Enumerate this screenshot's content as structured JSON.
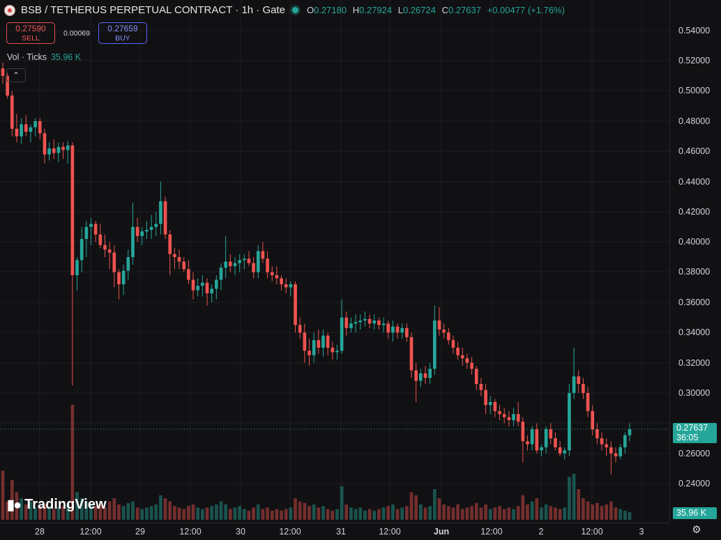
{
  "header": {
    "title": "BSB / TETHERUS PERPETUAL CONTRACT · 1h · Gate",
    "ohlc": [
      {
        "k": "O",
        "v": "0.27180"
      },
      {
        "k": "H",
        "v": "0.27924"
      },
      {
        "k": "L",
        "v": "0.26724"
      },
      {
        "k": "C",
        "v": "0.27637"
      }
    ],
    "change": "+0.00477 (+1.76%)"
  },
  "trade": {
    "sell_price": "0.27590",
    "sell_label": "SELL",
    "spread": "0.00069",
    "buy_price": "0.27659",
    "buy_label": "BUY"
  },
  "volume_legend": {
    "label": "Vol · Ticks",
    "value": "35.96 K"
  },
  "collapse_icon": "chevron-up-icon",
  "logo_text": "TradingView",
  "price_axis": [
    "0.54000",
    "0.52000",
    "0.50000",
    "0.48000",
    "0.46000",
    "0.44000",
    "0.42000",
    "0.40000",
    "0.38000",
    "0.36000",
    "0.34000",
    "0.32000",
    "0.30000",
    "0.28000",
    "0.26000",
    "0.24000"
  ],
  "time_axis": [
    {
      "t": "28",
      "bold": false
    },
    {
      "t": "12:00",
      "bold": false
    },
    {
      "t": "29",
      "bold": false
    },
    {
      "t": "12:00",
      "bold": false
    },
    {
      "t": "30",
      "bold": false
    },
    {
      "t": "12:00",
      "bold": false
    },
    {
      "t": "31",
      "bold": false
    },
    {
      "t": "12:00",
      "bold": false
    },
    {
      "t": "Jun",
      "bold": true
    },
    {
      "t": "12:00",
      "bold": false
    },
    {
      "t": "2",
      "bold": false
    },
    {
      "t": "12:00",
      "bold": false
    },
    {
      "t": "3",
      "bold": false
    }
  ],
  "last_price_tag": {
    "price": "0.27637",
    "countdown": "36:05"
  },
  "volume_tag": "35.96 K",
  "colors": {
    "up": "#26a69a",
    "down": "#ef5350",
    "background": "#111113",
    "grid": "#1e1e22"
  },
  "chart_data": {
    "type": "candlestick",
    "price_range": [
      0.23,
      0.56
    ],
    "candles": [
      [
        0.515,
        0.519,
        0.505,
        0.51
      ],
      [
        0.51,
        0.512,
        0.495,
        0.497
      ],
      [
        0.497,
        0.5,
        0.47,
        0.475
      ],
      [
        0.475,
        0.485,
        0.466,
        0.47
      ],
      [
        0.47,
        0.482,
        0.465,
        0.478
      ],
      [
        0.478,
        0.484,
        0.47,
        0.473
      ],
      [
        0.473,
        0.478,
        0.466,
        0.476
      ],
      [
        0.476,
        0.482,
        0.47,
        0.48
      ],
      [
        0.48,
        0.482,
        0.468,
        0.472
      ],
      [
        0.472,
        0.475,
        0.452,
        0.458
      ],
      [
        0.458,
        0.466,
        0.454,
        0.462
      ],
      [
        0.462,
        0.468,
        0.455,
        0.459
      ],
      [
        0.459,
        0.466,
        0.453,
        0.463
      ],
      [
        0.463,
        0.466,
        0.455,
        0.461
      ],
      [
        0.461,
        0.467,
        0.452,
        0.464
      ],
      [
        0.464,
        0.466,
        0.305,
        0.378
      ],
      [
        0.378,
        0.39,
        0.368,
        0.388
      ],
      [
        0.388,
        0.41,
        0.38,
        0.402
      ],
      [
        0.402,
        0.414,
        0.39,
        0.41
      ],
      [
        0.41,
        0.416,
        0.398,
        0.412
      ],
      [
        0.412,
        0.414,
        0.4,
        0.405
      ],
      [
        0.405,
        0.412,
        0.396,
        0.398
      ],
      [
        0.398,
        0.405,
        0.39,
        0.395
      ],
      [
        0.395,
        0.4,
        0.382,
        0.393
      ],
      [
        0.393,
        0.398,
        0.37,
        0.38
      ],
      [
        0.38,
        0.382,
        0.362,
        0.372
      ],
      [
        0.372,
        0.385,
        0.365,
        0.381
      ],
      [
        0.381,
        0.395,
        0.375,
        0.39
      ],
      [
        0.39,
        0.426,
        0.385,
        0.41
      ],
      [
        0.41,
        0.416,
        0.4,
        0.404
      ],
      [
        0.404,
        0.41,
        0.398,
        0.407
      ],
      [
        0.407,
        0.414,
        0.402,
        0.408
      ],
      [
        0.408,
        0.418,
        0.402,
        0.41
      ],
      [
        0.41,
        0.42,
        0.404,
        0.412
      ],
      [
        0.412,
        0.44,
        0.405,
        0.427
      ],
      [
        0.427,
        0.43,
        0.402,
        0.405
      ],
      [
        0.405,
        0.408,
        0.378,
        0.392
      ],
      [
        0.392,
        0.396,
        0.382,
        0.39
      ],
      [
        0.39,
        0.395,
        0.382,
        0.387
      ],
      [
        0.387,
        0.39,
        0.38,
        0.382
      ],
      [
        0.382,
        0.388,
        0.372,
        0.375
      ],
      [
        0.375,
        0.38,
        0.362,
        0.368
      ],
      [
        0.368,
        0.376,
        0.364,
        0.371
      ],
      [
        0.371,
        0.378,
        0.364,
        0.373
      ],
      [
        0.373,
        0.376,
        0.358,
        0.366
      ],
      [
        0.366,
        0.372,
        0.36,
        0.369
      ],
      [
        0.369,
        0.378,
        0.362,
        0.375
      ],
      [
        0.375,
        0.386,
        0.368,
        0.383
      ],
      [
        0.383,
        0.404,
        0.376,
        0.387
      ],
      [
        0.387,
        0.392,
        0.38,
        0.384
      ],
      [
        0.384,
        0.39,
        0.378,
        0.386
      ],
      [
        0.386,
        0.392,
        0.38,
        0.388
      ],
      [
        0.388,
        0.392,
        0.382,
        0.389
      ],
      [
        0.389,
        0.394,
        0.384,
        0.386
      ],
      [
        0.386,
        0.39,
        0.376,
        0.38
      ],
      [
        0.38,
        0.398,
        0.376,
        0.394
      ],
      [
        0.394,
        0.4,
        0.386,
        0.389
      ],
      [
        0.389,
        0.394,
        0.376,
        0.38
      ],
      [
        0.38,
        0.384,
        0.374,
        0.378
      ],
      [
        0.378,
        0.384,
        0.372,
        0.376
      ],
      [
        0.376,
        0.378,
        0.368,
        0.372
      ],
      [
        0.372,
        0.376,
        0.366,
        0.37
      ],
      [
        0.37,
        0.374,
        0.364,
        0.372
      ],
      [
        0.372,
        0.374,
        0.34,
        0.345
      ],
      [
        0.345,
        0.35,
        0.336,
        0.34
      ],
      [
        0.34,
        0.346,
        0.32,
        0.328
      ],
      [
        0.328,
        0.336,
        0.318,
        0.325
      ],
      [
        0.325,
        0.34,
        0.32,
        0.335
      ],
      [
        0.335,
        0.342,
        0.326,
        0.33
      ],
      [
        0.33,
        0.342,
        0.324,
        0.338
      ],
      [
        0.338,
        0.34,
        0.325,
        0.33
      ],
      [
        0.33,
        0.334,
        0.322,
        0.327
      ],
      [
        0.327,
        0.332,
        0.322,
        0.328
      ],
      [
        0.328,
        0.362,
        0.326,
        0.35
      ],
      [
        0.35,
        0.354,
        0.338,
        0.343
      ],
      [
        0.343,
        0.35,
        0.34,
        0.346
      ],
      [
        0.346,
        0.352,
        0.34,
        0.347
      ],
      [
        0.347,
        0.352,
        0.342,
        0.348
      ],
      [
        0.348,
        0.354,
        0.344,
        0.349
      ],
      [
        0.349,
        0.352,
        0.343,
        0.346
      ],
      [
        0.346,
        0.352,
        0.342,
        0.348
      ],
      [
        0.348,
        0.35,
        0.342,
        0.345
      ],
      [
        0.345,
        0.35,
        0.34,
        0.346
      ],
      [
        0.346,
        0.348,
        0.336,
        0.34
      ],
      [
        0.34,
        0.348,
        0.334,
        0.344
      ],
      [
        0.344,
        0.346,
        0.336,
        0.34
      ],
      [
        0.34,
        0.346,
        0.336,
        0.343
      ],
      [
        0.343,
        0.346,
        0.334,
        0.337
      ],
      [
        0.337,
        0.34,
        0.31,
        0.315
      ],
      [
        0.315,
        0.32,
        0.294,
        0.308
      ],
      [
        0.308,
        0.316,
        0.304,
        0.313
      ],
      [
        0.313,
        0.318,
        0.306,
        0.31
      ],
      [
        0.31,
        0.32,
        0.306,
        0.316
      ],
      [
        0.316,
        0.358,
        0.312,
        0.348
      ],
      [
        0.348,
        0.357,
        0.338,
        0.342
      ],
      [
        0.342,
        0.346,
        0.336,
        0.34
      ],
      [
        0.34,
        0.343,
        0.332,
        0.335
      ],
      [
        0.335,
        0.338,
        0.326,
        0.33
      ],
      [
        0.33,
        0.334,
        0.322,
        0.325
      ],
      [
        0.325,
        0.33,
        0.318,
        0.323
      ],
      [
        0.323,
        0.326,
        0.316,
        0.32
      ],
      [
        0.32,
        0.324,
        0.312,
        0.316
      ],
      [
        0.316,
        0.318,
        0.302,
        0.306
      ],
      [
        0.306,
        0.31,
        0.298,
        0.302
      ],
      [
        0.302,
        0.306,
        0.286,
        0.292
      ],
      [
        0.292,
        0.298,
        0.286,
        0.294
      ],
      [
        0.294,
        0.296,
        0.284,
        0.288
      ],
      [
        0.288,
        0.292,
        0.282,
        0.286
      ],
      [
        0.286,
        0.29,
        0.28,
        0.284
      ],
      [
        0.284,
        0.288,
        0.278,
        0.282
      ],
      [
        0.282,
        0.29,
        0.278,
        0.286
      ],
      [
        0.286,
        0.294,
        0.278,
        0.281
      ],
      [
        0.281,
        0.284,
        0.254,
        0.268
      ],
      [
        0.268,
        0.272,
        0.262,
        0.266
      ],
      [
        0.266,
        0.278,
        0.262,
        0.276
      ],
      [
        0.276,
        0.28,
        0.26,
        0.262
      ],
      [
        0.262,
        0.266,
        0.258,
        0.264
      ],
      [
        0.264,
        0.278,
        0.26,
        0.276
      ],
      [
        0.276,
        0.28,
        0.266,
        0.27
      ],
      [
        0.27,
        0.274,
        0.262,
        0.264
      ],
      [
        0.264,
        0.268,
        0.258,
        0.26
      ],
      [
        0.26,
        0.264,
        0.256,
        0.262
      ],
      [
        0.262,
        0.306,
        0.258,
        0.3
      ],
      [
        0.3,
        0.33,
        0.296,
        0.311
      ],
      [
        0.311,
        0.315,
        0.3,
        0.306
      ],
      [
        0.306,
        0.31,
        0.296,
        0.3
      ],
      [
        0.3,
        0.304,
        0.284,
        0.288
      ],
      [
        0.288,
        0.292,
        0.272,
        0.276
      ],
      [
        0.276,
        0.28,
        0.266,
        0.27
      ],
      [
        0.27,
        0.274,
        0.262,
        0.266
      ],
      [
        0.266,
        0.27,
        0.258,
        0.264
      ],
      [
        0.264,
        0.268,
        0.246,
        0.26
      ],
      [
        0.26,
        0.264,
        0.254,
        0.258
      ],
      [
        0.258,
        0.266,
        0.256,
        0.264
      ],
      [
        0.264,
        0.274,
        0.26,
        0.272
      ],
      [
        0.272,
        0.28,
        0.268,
        0.276
      ]
    ],
    "volume": [
      0.32,
      0.12,
      0.26,
      0.18,
      0.14,
      0.1,
      0.12,
      0.08,
      0.09,
      0.1,
      0.08,
      0.07,
      0.08,
      0.09,
      0.1,
      0.75,
      0.18,
      0.14,
      0.12,
      0.1,
      0.09,
      0.1,
      0.08,
      0.12,
      0.14,
      0.1,
      0.09,
      0.11,
      0.12,
      0.08,
      0.07,
      0.08,
      0.09,
      0.1,
      0.16,
      0.14,
      0.12,
      0.09,
      0.08,
      0.07,
      0.09,
      0.1,
      0.08,
      0.07,
      0.08,
      0.09,
      0.1,
      0.12,
      0.1,
      0.07,
      0.08,
      0.09,
      0.07,
      0.06,
      0.08,
      0.1,
      0.07,
      0.08,
      0.06,
      0.07,
      0.06,
      0.07,
      0.08,
      0.14,
      0.12,
      0.11,
      0.09,
      0.1,
      0.08,
      0.09,
      0.07,
      0.06,
      0.07,
      0.22,
      0.1,
      0.08,
      0.07,
      0.08,
      0.06,
      0.07,
      0.06,
      0.07,
      0.08,
      0.09,
      0.1,
      0.07,
      0.08,
      0.09,
      0.18,
      0.16,
      0.1,
      0.08,
      0.09,
      0.2,
      0.14,
      0.1,
      0.09,
      0.08,
      0.1,
      0.07,
      0.08,
      0.09,
      0.11,
      0.08,
      0.1,
      0.07,
      0.08,
      0.09,
      0.07,
      0.08,
      0.07,
      0.09,
      0.16,
      0.1,
      0.12,
      0.14,
      0.08,
      0.1,
      0.09,
      0.08,
      0.07,
      0.08,
      0.28,
      0.3,
      0.2,
      0.14,
      0.12,
      0.1,
      0.11,
      0.09,
      0.1,
      0.12,
      0.08,
      0.07,
      0.06,
      0.05
    ]
  }
}
